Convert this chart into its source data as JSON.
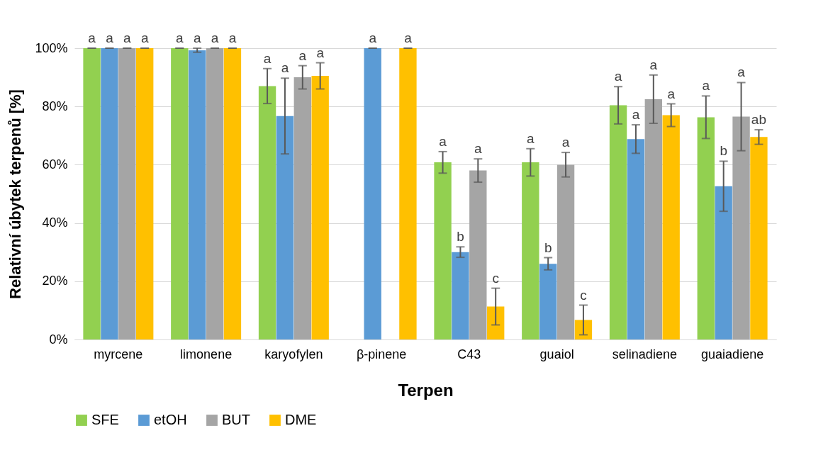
{
  "chart_data": {
    "type": "bar",
    "xlabel": "Terpen",
    "ylabel": "Relativní úbytek terpenů [%]",
    "categories": [
      "myrcene",
      "limonene",
      "karyofylen",
      "β-pinene",
      "C43",
      "guaiol",
      "selinadiene",
      "guaiadiene"
    ],
    "series": [
      {
        "name": "SFE",
        "color": "#92d050",
        "values": [
          100,
          100,
          87,
          0,
          60.8,
          60.8,
          80.4,
          76.3
        ],
        "errors": [
          0,
          0,
          6,
          null,
          3.7,
          4.7,
          6.4,
          7.3
        ],
        "value_labels": [
          "a",
          "a",
          "a",
          null,
          "a",
          "a",
          "a",
          "a"
        ]
      },
      {
        "name": "etOH",
        "color": "#5b9bd5",
        "values": [
          100,
          99.3,
          76.7,
          100,
          30,
          26,
          68.8,
          52.6
        ],
        "errors": [
          0,
          0.7,
          13,
          0,
          1.8,
          2.1,
          4.9,
          8.6
        ],
        "value_labels": [
          "a",
          "a",
          "a",
          "a",
          "b",
          "b",
          "a",
          "b"
        ]
      },
      {
        "name": "BUT",
        "color": "#a5a5a5",
        "values": [
          100,
          100,
          90,
          0,
          58,
          60,
          82.5,
          76.5
        ],
        "errors": [
          0,
          0,
          4,
          null,
          4,
          4.2,
          8.3,
          11.7
        ],
        "value_labels": [
          "a",
          "a",
          "a",
          null,
          "a",
          "a",
          "a",
          "a"
        ]
      },
      {
        "name": "DME",
        "color": "#ffc000",
        "values": [
          100,
          100,
          90.5,
          100,
          11.3,
          6.7,
          77,
          69.5
        ],
        "errors": [
          0,
          0,
          4.5,
          0,
          6.3,
          5.1,
          3.9,
          2.5
        ],
        "value_labels": [
          "a",
          "a",
          "a",
          "a",
          "c",
          "c",
          "a",
          "ab"
        ]
      }
    ],
    "ylim": [
      0,
      100
    ],
    "yticks": [
      {
        "value": 0,
        "label": "0%"
      },
      {
        "value": 20,
        "label": "20%"
      },
      {
        "value": 40,
        "label": "40%"
      },
      {
        "value": 60,
        "label": "60%"
      },
      {
        "value": 80,
        "label": "80%"
      },
      {
        "value": 100,
        "label": "100%"
      }
    ],
    "grid": "y",
    "legend": "bottom"
  }
}
